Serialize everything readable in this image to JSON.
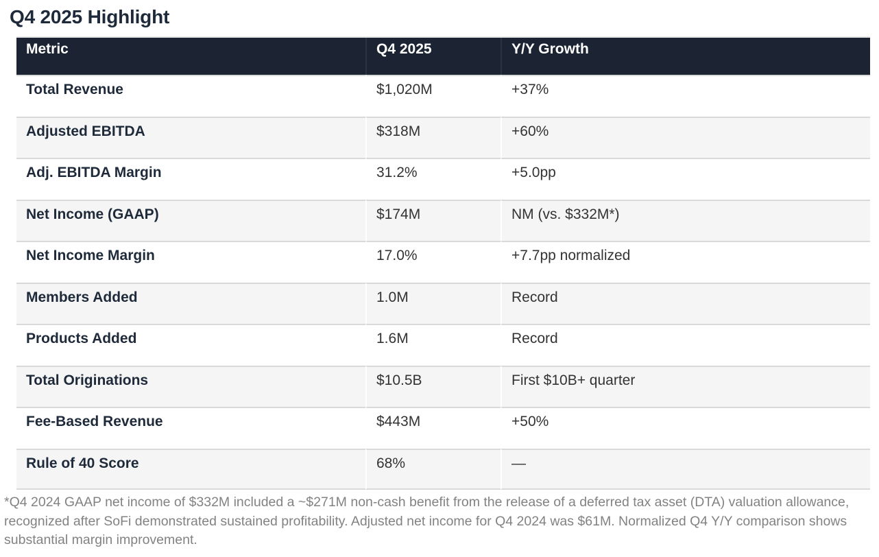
{
  "title": "Q4 2025 Highlight",
  "colors": {
    "header_background": "#1c2433",
    "heading_text": "#1e2a3a",
    "value_text": "#333333",
    "stripe_background": "#f5f5f5",
    "row_separator": "#d9d9d9",
    "footnote_text": "#828282"
  },
  "table": {
    "columns": [
      {
        "label": "Metric"
      },
      {
        "label": "Q4 2025"
      },
      {
        "label": "Y/Y Growth"
      }
    ],
    "rows": [
      {
        "metric": "Total Revenue",
        "value": "$1,020M",
        "growth": "+37%"
      },
      {
        "metric": "Adjusted EBITDA",
        "value": "$318M",
        "growth": "+60%"
      },
      {
        "metric": "Adj. EBITDA Margin",
        "value": "31.2%",
        "growth": "+5.0pp"
      },
      {
        "metric": "Net Income (GAAP)",
        "value": "$174M",
        "growth": "NM (vs. $332M*)"
      },
      {
        "metric": "Net Income Margin",
        "value": "17.0%",
        "growth": "+7.7pp normalized"
      },
      {
        "metric": "Members Added",
        "value": "1.0M",
        "growth": "Record"
      },
      {
        "metric": "Products Added",
        "value": "1.6M",
        "growth": "Record"
      },
      {
        "metric": "Total Originations",
        "value": "$10.5B",
        "growth": "First $10B+ quarter"
      },
      {
        "metric": "Fee-Based Revenue",
        "value": "$443M",
        "growth": "+50%"
      },
      {
        "metric": "Rule of 40 Score",
        "value": "68%",
        "growth": "—"
      }
    ]
  },
  "footnote": "*Q4 2024 GAAP net income of $332M included a ~$271M non-cash benefit from the release of a deferred tax asset (DTA) valuation allowance, recognized after SoFi demonstrated sustained profitability. Adjusted net income for Q4 2024 was $61M. Normalized Q4 Y/Y comparison shows substantial margin improvement."
}
